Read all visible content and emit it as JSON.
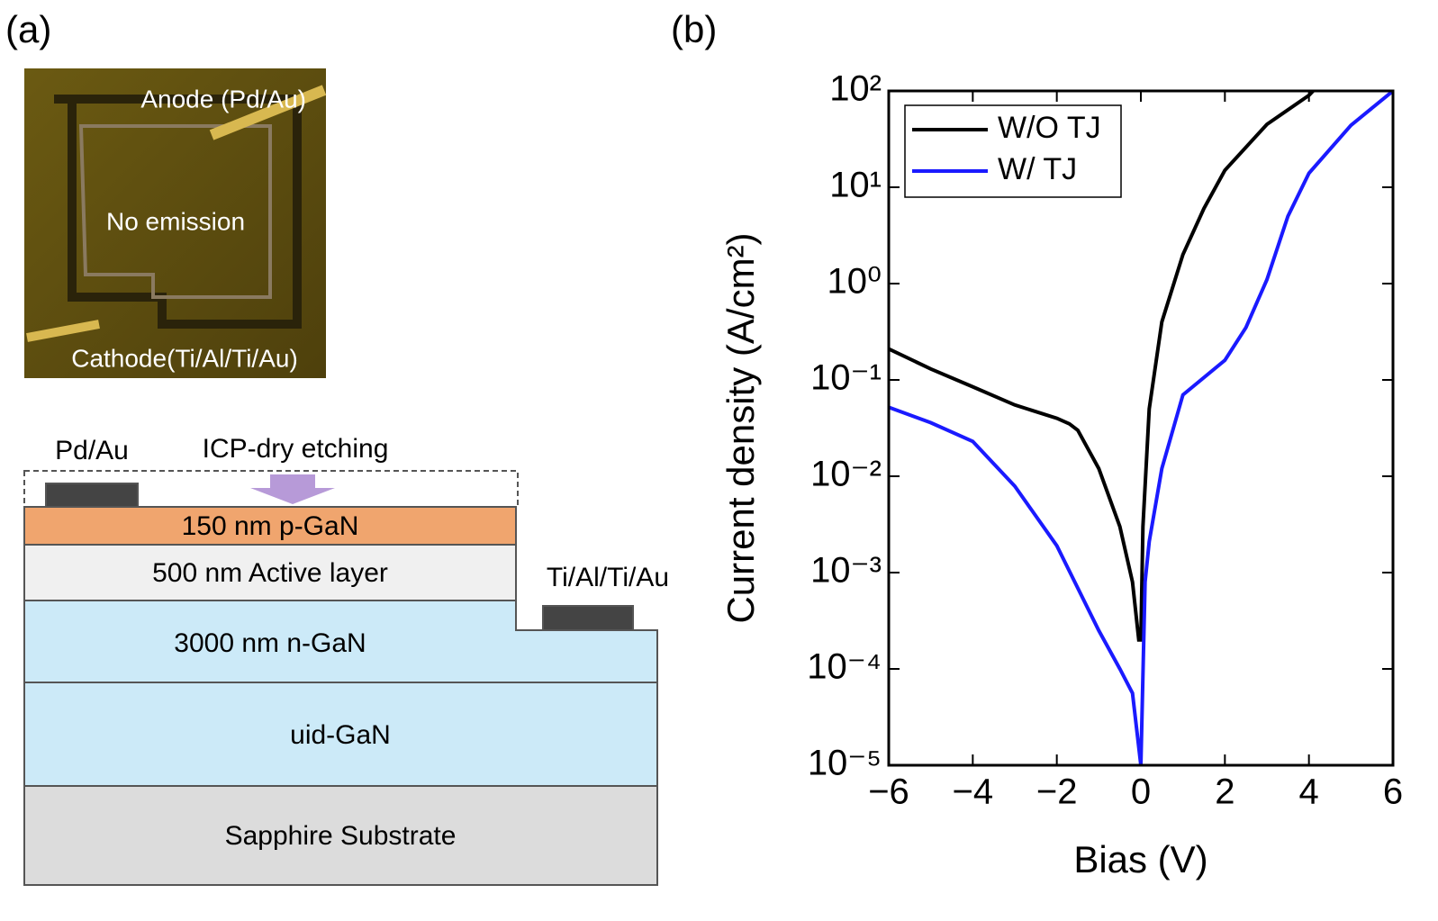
{
  "panel_a": {
    "label": "(a)",
    "photo": {
      "anode": "Anode (Pd/Au)",
      "center": "No emission",
      "cathode": "Cathode(Ti/Al/Ti/Au)"
    },
    "diagram": {
      "top_contact": "Pd/Au",
      "etch": "ICP-dry etching",
      "side_contact": "Ti/Al/Ti/Au",
      "layers": [
        "150 nm p-GaN",
        "500 nm Active layer",
        "3000 nm n-GaN",
        "uid-GaN",
        "Sapphire Substrate"
      ]
    }
  },
  "chart_data": {
    "type": "line",
    "panel_label": "(b)",
    "xlabel": "Bias (V)",
    "ylabel": "Current density (A/cm²)",
    "log_y": true,
    "legend": "top-left",
    "xlim": [
      -6,
      6
    ],
    "xticks": [
      {
        "value": -6,
        "label": "−6"
      },
      {
        "value": -4,
        "label": "−4"
      },
      {
        "value": -2,
        "label": "−2"
      },
      0,
      2,
      4,
      6
    ],
    "ylim": [
      1e-05,
      100
    ],
    "yticks": [
      {
        "value": 1e-05,
        "label": "10⁻⁵"
      },
      {
        "value": 0.0001,
        "label": "10⁻⁴"
      },
      {
        "value": 0.001,
        "label": "10⁻³"
      },
      {
        "value": 0.01,
        "label": "10⁻²"
      },
      {
        "value": 0.1,
        "label": "10⁻¹"
      },
      {
        "value": 1,
        "label": "10⁰"
      },
      {
        "value": 10,
        "label": "10¹"
      },
      {
        "value": 100,
        "label": "10²"
      }
    ],
    "series": [
      {
        "name": "W/O TJ",
        "color": "#000000",
        "x": [
          -6,
          -5,
          -4,
          -3,
          -2,
          -1.7,
          -1.5,
          -1,
          -0.5,
          -0.2,
          -0.05,
          0,
          0.05,
          0.2,
          0.5,
          1,
          1.5,
          2,
          3,
          4,
          4.1
        ],
        "values": [
          0.21,
          0.13,
          0.085,
          0.055,
          0.04,
          0.035,
          0.03,
          0.012,
          0.003,
          0.0008,
          0.0002,
          0.0002,
          0.003,
          0.05,
          0.4,
          2,
          6,
          15,
          45,
          90,
          100
        ]
      },
      {
        "name": "W/ TJ",
        "color": "#1a1aff",
        "x": [
          -6,
          -5,
          -4,
          -3,
          -2,
          -1,
          -0.5,
          -0.2,
          0,
          0.1,
          0.2,
          0.5,
          1,
          2,
          2.5,
          3,
          3.5,
          4,
          5,
          6
        ],
        "values": [
          0.052,
          0.036,
          0.023,
          0.0079,
          0.0019,
          0.00025,
          0.0001,
          5.6e-05,
          1e-05,
          0.0008,
          0.0021,
          0.012,
          0.07,
          0.16,
          0.35,
          1.1,
          5,
          14,
          44,
          100
        ]
      }
    ]
  }
}
